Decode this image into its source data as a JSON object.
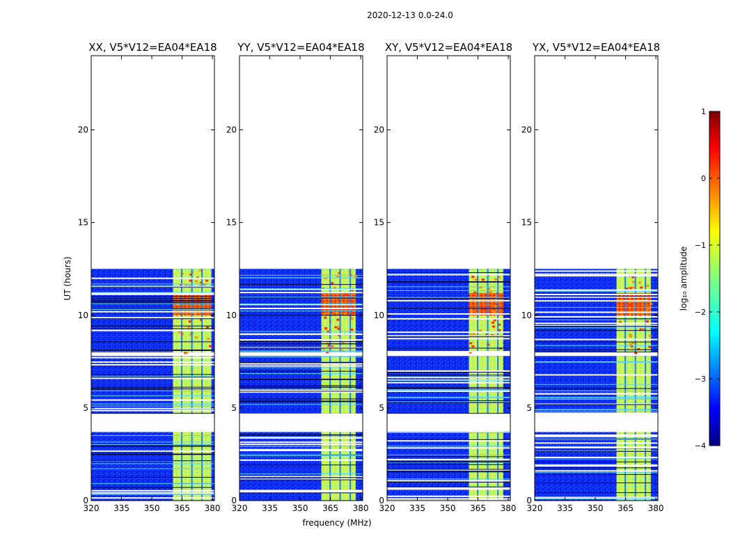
{
  "figure": {
    "suptitle": "2020-12-13 0.0-24.0",
    "ylabel": "UT (hours)",
    "xlabel": "frequency (MHz)",
    "colorbar": {
      "label": "log₁₀ amplitude",
      "range": [
        -4,
        1
      ],
      "ticks": [
        "1",
        "0",
        "−1",
        "−2",
        "−3",
        "−4"
      ],
      "colormap": "jet"
    }
  },
  "chart_data": [
    {
      "type": "heatmap",
      "title": "XX, V5*V12=EA04*EA18",
      "xlim": [
        320,
        381
      ],
      "ylim": [
        0,
        24
      ],
      "xticks": [
        "320",
        "335",
        "350",
        "365",
        "380"
      ],
      "yticks": [
        "0",
        "5",
        "10",
        "15",
        "20"
      ],
      "band_start_mhz": 360.5,
      "band_end_mhz": 379.5,
      "band_dividers_mhz": [
        364.5,
        369.5,
        374.5
      ]
    },
    {
      "type": "heatmap",
      "title": "YY, V5*V12=EA04*EA18",
      "xlim": [
        320,
        381
      ],
      "ylim": [
        0,
        24
      ],
      "xticks": [
        "320",
        "335",
        "350",
        "365",
        "380"
      ],
      "yticks": [
        "0",
        "5",
        "10",
        "15",
        "20"
      ],
      "band_start_mhz": 360.5,
      "band_end_mhz": 377.5,
      "band_dividers_mhz": [
        364.5,
        369.5,
        374.5
      ]
    },
    {
      "type": "heatmap",
      "title": "XY, V5*V12=EA04*EA18",
      "xlim": [
        320,
        381
      ],
      "ylim": [
        0,
        24
      ],
      "xticks": [
        "320",
        "335",
        "350",
        "365",
        "380"
      ],
      "yticks": [
        "0",
        "5",
        "10",
        "15",
        "20"
      ],
      "band_start_mhz": 360.5,
      "band_end_mhz": 377.5,
      "band_dividers_mhz": [
        364.5,
        369.5,
        374.5
      ]
    },
    {
      "type": "heatmap",
      "title": "YX, V5*V12=EA04*EA18",
      "xlim": [
        320,
        381
      ],
      "ylim": [
        0,
        24
      ],
      "xticks": [
        "320",
        "335",
        "350",
        "365",
        "380"
      ],
      "yticks": [
        "0",
        "5",
        "10",
        "15",
        "20"
      ],
      "band_start_mhz": 360.5,
      "band_end_mhz": 377.5,
      "band_dividers_mhz": [
        364.5,
        369.5,
        374.5
      ]
    }
  ],
  "data_segments_ut_hours": [
    [
      0.0,
      3.7
    ],
    [
      4.7,
      7.8
    ],
    [
      8.0,
      12.5
    ]
  ],
  "strong_rfi_window_ut_hours": [
    10.0,
    11.2
  ],
  "colors": {
    "background": "#ffffff",
    "axes": "#000000",
    "flagged_row": "#ffffff"
  }
}
